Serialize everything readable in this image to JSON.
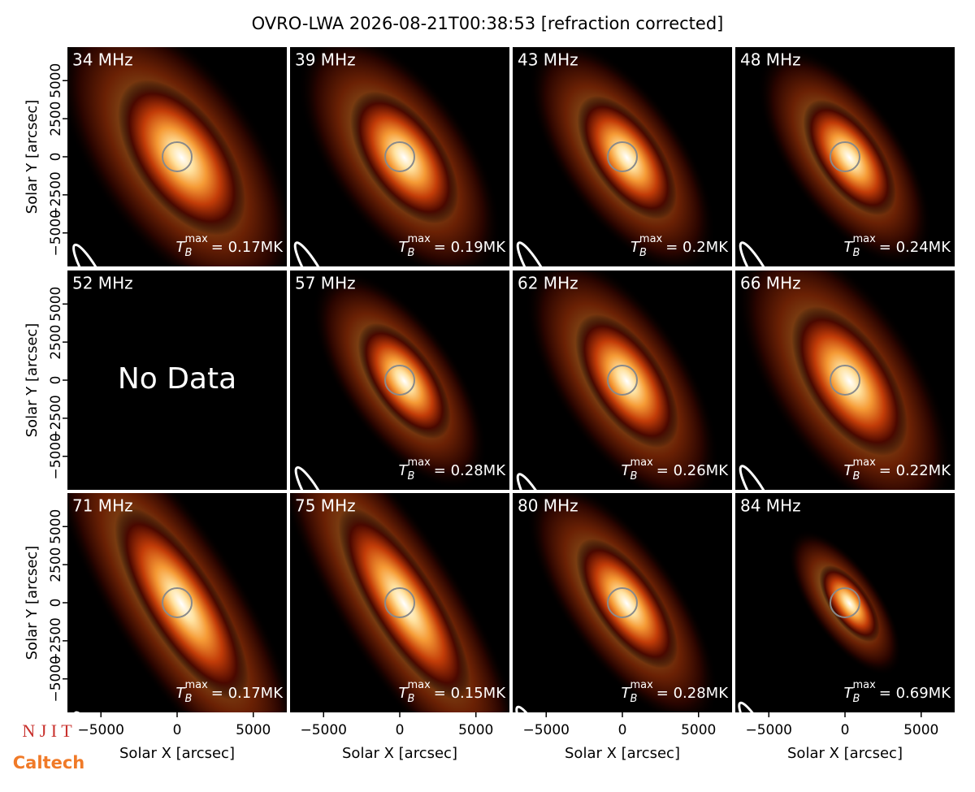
{
  "title": "OVRO-LWA 2026-08-21T00:38:53 [refraction corrected]",
  "logos": {
    "top": "N J I T",
    "bottom": "Caltech"
  },
  "tb_symbol": {
    "base": "T",
    "sub": "B",
    "sup": "max"
  },
  "chart_data": [
    {
      "type": "image",
      "title": "34 MHz",
      "tb_text": "= 0.17MK",
      "xlim": [
        -7200,
        7200
      ],
      "ylim": [
        -7200,
        7200
      ],
      "ylabel": "Solar Y [arcsec]",
      "yticks": [
        5000,
        2500,
        0,
        {
          "value": -2500,
          "label": "−2500"
        },
        {
          "value": -5000,
          "label": "−5000"
        }
      ]
    },
    {
      "type": "image",
      "title": "39 MHz",
      "tb_text": "= 0.19MK",
      "xlim": [
        -7200,
        7200
      ],
      "ylim": [
        -7200,
        7200
      ]
    },
    {
      "type": "image",
      "title": "43 MHz",
      "tb_text": "= 0.2MK",
      "xlim": [
        -7200,
        7200
      ],
      "ylim": [
        -7200,
        7200
      ]
    },
    {
      "type": "image",
      "title": "48 MHz",
      "tb_text": "= 0.24MK",
      "xlim": [
        -7200,
        7200
      ],
      "ylim": [
        -7200,
        7200
      ]
    },
    {
      "type": "image",
      "title": "52 MHz",
      "note": "No Data",
      "xlim": [
        -7200,
        7200
      ],
      "ylim": [
        -7200,
        7200
      ],
      "ylabel": "Solar Y [arcsec]",
      "yticks": [
        5000,
        2500,
        0,
        {
          "value": -2500,
          "label": "−2500"
        },
        {
          "value": -5000,
          "label": "−5000"
        }
      ]
    },
    {
      "type": "image",
      "title": "57 MHz",
      "tb_text": "= 0.28MK",
      "xlim": [
        -7200,
        7200
      ],
      "ylim": [
        -7200,
        7200
      ]
    },
    {
      "type": "image",
      "title": "62 MHz",
      "tb_text": "= 0.26MK",
      "xlim": [
        -7200,
        7200
      ],
      "ylim": [
        -7200,
        7200
      ]
    },
    {
      "type": "image",
      "title": "66 MHz",
      "tb_text": "= 0.22MK",
      "xlim": [
        -7200,
        7200
      ],
      "ylim": [
        -7200,
        7200
      ]
    },
    {
      "type": "image",
      "title": "71 MHz",
      "tb_text": "= 0.17MK",
      "xlim": [
        -7200,
        7200
      ],
      "ylim": [
        -7200,
        7200
      ],
      "ylabel": "Solar Y [arcsec]",
      "yticks": [
        5000,
        2500,
        0,
        {
          "value": -2500,
          "label": "−2500"
        },
        {
          "value": -5000,
          "label": "−5000"
        }
      ],
      "xlabel": "Solar X [arcsec]",
      "xticks": [
        {
          "value": -5000,
          "label": "−5000"
        },
        0,
        5000
      ]
    },
    {
      "type": "image",
      "title": "75 MHz",
      "tb_text": "= 0.15MK",
      "xlim": [
        -7200,
        7200
      ],
      "ylim": [
        -7200,
        7200
      ],
      "xlabel": "Solar X [arcsec]",
      "xticks": [
        {
          "value": -5000,
          "label": "−5000"
        },
        0,
        5000
      ]
    },
    {
      "type": "image",
      "title": "80 MHz",
      "tb_text": "= 0.28MK",
      "xlim": [
        -7200,
        7200
      ],
      "ylim": [
        -7200,
        7200
      ],
      "xlabel": "Solar X [arcsec]",
      "xticks": [
        {
          "value": -5000,
          "label": "−5000"
        },
        0,
        5000
      ]
    },
    {
      "type": "image",
      "title": "84 MHz",
      "tb_text": "= 0.69MK",
      "xlim": [
        -7200,
        7200
      ],
      "ylim": [
        -7200,
        7200
      ],
      "xlabel": "Solar X [arcsec]",
      "xticks": [
        {
          "value": -5000,
          "label": "−5000"
        },
        0,
        5000
      ]
    }
  ]
}
